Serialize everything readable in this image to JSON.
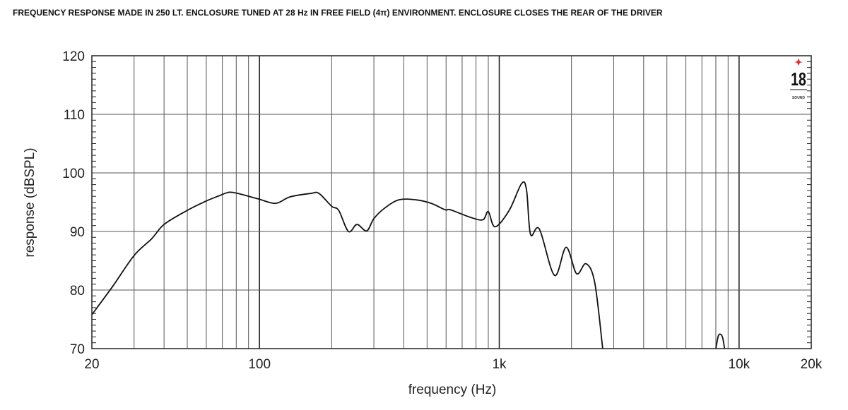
{
  "chart_data": {
    "type": "line",
    "title": "FREQUENCY RESPONSE MADE IN 250 LT. ENCLOSURE TUNED AT 28 Hz IN FREE FIELD (4π) ENVIRONMENT. ENCLOSURE CLOSES THE REAR OF THE DRIVER",
    "xlabel": "frequency (Hz)",
    "ylabel": "response (dBSPL)",
    "x_scale": "log",
    "xlim": [
      20,
      20000
    ],
    "ylim": [
      70,
      120
    ],
    "grid": true,
    "x_ticks": [
      {
        "value": 20,
        "label": "20"
      },
      {
        "value": 100,
        "label": "100"
      },
      {
        "value": 1000,
        "label": "1k"
      },
      {
        "value": 10000,
        "label": "10k"
      },
      {
        "value": 20000,
        "label": "20k"
      }
    ],
    "y_ticks": [
      {
        "value": 70,
        "label": "70"
      },
      {
        "value": 80,
        "label": "80"
      },
      {
        "value": 90,
        "label": "90"
      },
      {
        "value": 100,
        "label": "100"
      },
      {
        "value": 110,
        "label": "110"
      },
      {
        "value": 120,
        "label": "120"
      }
    ],
    "series": [
      {
        "color": "#111111",
        "segments": [
          [
            [
              20,
              75.8
            ],
            [
              24.5,
              80.7
            ],
            [
              30,
              85.9
            ],
            [
              35.6,
              88.8
            ],
            [
              40,
              91.2
            ],
            [
              50,
              93.6
            ],
            [
              60,
              95.2
            ],
            [
              68,
              96.1
            ],
            [
              75,
              96.7
            ],
            [
              83,
              96.4
            ],
            [
              92,
              95.9
            ],
            [
              100,
              95.5
            ],
            [
              117,
              94.8
            ],
            [
              134,
              95.9
            ],
            [
              164,
              96.5
            ],
            [
              177,
              96.5
            ],
            [
              200,
              94.3
            ],
            [
              214,
              93.6
            ],
            [
              235,
              90
            ],
            [
              255,
              91.2
            ],
            [
              280,
              90.1
            ],
            [
              300,
              92.2
            ],
            [
              333,
              94
            ],
            [
              382,
              95.4
            ],
            [
              450,
              95.4
            ],
            [
              520,
              94.8
            ],
            [
              595,
              93.7
            ],
            [
              625,
              93.7
            ],
            [
              760,
              92.4
            ],
            [
              855,
              92
            ],
            [
              900,
              93.4
            ],
            [
              960,
              90.8
            ],
            [
              1100,
              93.6
            ],
            [
              1240,
              98.2
            ],
            [
              1300,
              97
            ],
            [
              1350,
              89.5
            ],
            [
              1470,
              90.4
            ],
            [
              1700,
              82.5
            ],
            [
              1900,
              87.3
            ],
            [
              2100,
              82.8
            ],
            [
              2300,
              84.5
            ],
            [
              2500,
              81.3
            ],
            [
              2700,
              70
            ]
          ],
          [
            [
              8000,
              70
            ],
            [
              8200,
              72.2
            ],
            [
              8400,
              72.4
            ],
            [
              8550,
              71.8
            ],
            [
              8700,
              70
            ]
          ]
        ]
      }
    ]
  },
  "logo": {
    "text": "18",
    "subtext": "EIGHTEEN SOUND",
    "accent": "#e03030"
  }
}
